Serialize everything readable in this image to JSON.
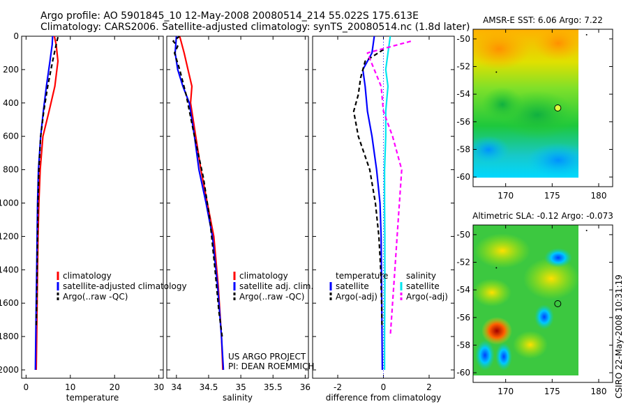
{
  "header": {
    "title_line1": "Argo profile: AO 5901845_10 12-May-2008 20080514_214 55.022S 175.613E",
    "title_line2": "Climatology: CARS2006. Satellite-adjusted climatology: synTS_20080514.nc (1.8d later)"
  },
  "side_label": "CSIRO 22-May-2008 10:31:19",
  "project_note": {
    "line1": "US ARGO PROJECT",
    "line2": "PI: DEAN ROEMMICH"
  },
  "colors": {
    "climatology": "#ff0000",
    "satellite": "#0000ff",
    "argo": "#000000",
    "salinity_satellite": "#00e5ee",
    "salinity_argo": "#ff00ff",
    "zero_line": "#0000ff"
  },
  "chart_data": [
    {
      "type": "line",
      "name": "temperature-profile",
      "xlabel": "temperature",
      "ylabel": "",
      "xlim": [
        -1,
        31
      ],
      "ylim": [
        2050,
        0
      ],
      "xticks": [
        0,
        10,
        20,
        30
      ],
      "xtick_labels": [
        "0",
        "10",
        "20",
        "30"
      ],
      "yticks": [
        0,
        200,
        400,
        600,
        800,
        1000,
        1200,
        1400,
        1600,
        1800,
        2000
      ],
      "ytick_labels": [
        "0",
        "200",
        "400",
        "600",
        "800",
        "1000",
        "1200",
        "1400",
        "1600",
        "1800",
        "2000"
      ],
      "legend": [
        {
          "label": "climatology",
          "color": "#ff0000",
          "dash": "solid"
        },
        {
          "label": "satellite-adjusted climatology",
          "color": "#0000ff",
          "dash": "solid"
        },
        {
          "label": "Argo(..raw -QC)",
          "color": "#000000",
          "dash": "dash"
        }
      ],
      "series": [
        {
          "name": "climatology",
          "color": "#ff0000",
          "dash": "solid",
          "x": [
            6.4,
            6.8,
            7.2,
            6.5,
            5.2,
            3.8,
            3.2,
            2.9,
            2.7,
            2.6,
            2.5,
            2.4,
            2.3
          ],
          "y": [
            0,
            50,
            150,
            300,
            450,
            600,
            800,
            1000,
            1200,
            1400,
            1600,
            1800,
            2000
          ]
        },
        {
          "name": "satellite-adjusted climatology",
          "color": "#0000ff",
          "dash": "solid",
          "x": [
            6.0,
            5.9,
            5.4,
            4.6,
            3.9,
            3.3,
            2.8,
            2.6,
            2.5,
            2.4,
            2.3,
            2.2,
            2.1
          ],
          "y": [
            0,
            50,
            150,
            300,
            450,
            600,
            800,
            1000,
            1200,
            1400,
            1600,
            1800,
            2000
          ]
        },
        {
          "name": "Argo(..raw -QC)",
          "color": "#000000",
          "dash": "dash",
          "x": [
            7.2,
            6.8,
            6.0,
            4.9,
            4.0,
            3.3,
            2.9,
            2.7,
            2.6,
            2.5,
            2.4,
            2.3
          ],
          "y": [
            5,
            50,
            150,
            300,
            450,
            600,
            800,
            1000,
            1200,
            1400,
            1600,
            1750
          ]
        }
      ]
    },
    {
      "type": "line",
      "name": "salinity-profile",
      "xlabel": "salinity",
      "xlim": [
        33.85,
        36.05
      ],
      "ylim": [
        2050,
        0
      ],
      "xticks": [
        34,
        34.5,
        35,
        35.5,
        36
      ],
      "xtick_labels": [
        "34",
        "34.5",
        "35",
        "35.5",
        "36"
      ],
      "legend": [
        {
          "label": "climatology",
          "color": "#ff0000",
          "dash": "solid"
        },
        {
          "label": "satellite adj. clim.",
          "color": "#0000ff",
          "dash": "solid"
        },
        {
          "label": "Argo(..raw -QC)",
          "color": "#000000",
          "dash": "dash"
        }
      ],
      "series": [
        {
          "name": "climatology",
          "color": "#ff0000",
          "dash": "solid",
          "x": [
            34.05,
            34.12,
            34.18,
            34.24,
            34.22,
            34.3,
            34.38,
            34.48,
            34.58,
            34.65,
            34.7,
            34.72
          ],
          "y": [
            0,
            100,
            200,
            300,
            400,
            600,
            800,
            1000,
            1200,
            1500,
            1800,
            2000
          ]
        },
        {
          "name": "satellite adj. clim.",
          "color": "#0000ff",
          "dash": "solid",
          "x": [
            34.0,
            33.98,
            34.02,
            34.1,
            34.2,
            34.28,
            34.35,
            34.46,
            34.56,
            34.64,
            34.7,
            34.73
          ],
          "y": [
            0,
            100,
            200,
            300,
            400,
            600,
            800,
            1000,
            1200,
            1500,
            1800,
            2000
          ]
        },
        {
          "name": "Argo(..raw -QC)",
          "color": "#000000",
          "dash": "dash",
          "x": [
            34.05,
            33.95,
            34.02,
            33.97,
            34.05,
            34.15,
            34.28,
            34.42,
            34.52,
            34.6,
            34.66,
            34.71
          ],
          "y": [
            0,
            30,
            60,
            100,
            200,
            350,
            600,
            850,
            1100,
            1400,
            1650,
            1800
          ]
        }
      ]
    },
    {
      "type": "line",
      "name": "difference-profile",
      "xlabel": "difference from climatology",
      "xlim": [
        -3.1,
        3.1
      ],
      "ylim": [
        2050,
        0
      ],
      "xticks": [
        -2,
        0,
        2
      ],
      "xtick_labels": [
        "-2",
        "0",
        "2"
      ],
      "legend_left": {
        "title": "temperature",
        "items": [
          {
            "label": "satellite",
            "color": "#0000ff",
            "dash": "solid"
          },
          {
            "label": "Argo(-adj)",
            "color": "#000000",
            "dash": "dash"
          }
        ]
      },
      "legend_right": {
        "title": "salinity",
        "items": [
          {
            "label": "satellite",
            "color": "#00e5ee",
            "dash": "solid"
          },
          {
            "label": "Argo(-adj)",
            "color": "#ff00ff",
            "dash": "dash"
          }
        ]
      },
      "series": [
        {
          "name": "temperature satellite",
          "color": "#0000ff",
          "dash": "solid",
          "x": [
            -0.4,
            -0.5,
            -0.9,
            -0.8,
            -0.7,
            -0.5,
            -0.3,
            -0.15,
            -0.1,
            -0.08,
            -0.06,
            -0.05
          ],
          "y": [
            0,
            100,
            200,
            300,
            450,
            600,
            800,
            1000,
            1200,
            1500,
            1800,
            2000
          ]
        },
        {
          "name": "temperature Argo(-adj)",
          "color": "#000000",
          "dash": "dash",
          "x": [
            0.0,
            -0.8,
            -1.0,
            -1.1,
            -1.3,
            -1.1,
            -0.6,
            -0.35,
            -0.2,
            -0.12,
            -0.08,
            -0.06
          ],
          "y": [
            80,
            150,
            250,
            350,
            450,
            600,
            800,
            1000,
            1200,
            1400,
            1600,
            1750
          ]
        },
        {
          "name": "salinity satellite",
          "color": "#00e5ee",
          "dash": "solid",
          "x": [
            0.3,
            0.2,
            0.1,
            0.2,
            0.1,
            0.1,
            0.05,
            0.05,
            0.06,
            0.06,
            0.05,
            0.05
          ],
          "y": [
            0,
            100,
            200,
            300,
            450,
            600,
            800,
            1000,
            1200,
            1500,
            1800,
            2000
          ]
        },
        {
          "name": "salinity Argo(-adj)",
          "color": "#ff00ff",
          "dash": "dash",
          "x": [
            1.2,
            -0.7,
            -0.4,
            -0.1,
            0.0,
            0.4,
            0.8,
            0.7,
            0.6,
            0.5,
            0.4,
            0.3
          ],
          "y": [
            30,
            100,
            200,
            300,
            450,
            600,
            800,
            1000,
            1200,
            1400,
            1600,
            1800
          ]
        }
      ]
    },
    {
      "type": "heatmap",
      "name": "amsr-e-sst-map",
      "title": "AMSR-E SST: 6.06 Argo: 7.22",
      "xlim": [
        166.5,
        181.5
      ],
      "ylim": [
        -60.7,
        -49.3
      ],
      "data_xlim": [
        166.5,
        180
      ],
      "data_ylim": [
        -60,
        -49.3
      ],
      "xticks": [
        170,
        175,
        180
      ],
      "xtick_labels": [
        "170",
        "175",
        "180"
      ],
      "yticks": [
        -50,
        -52,
        -54,
        -56,
        -58,
        -60
      ],
      "ytick_labels": [
        "-50",
        "-52",
        "-54",
        "-56",
        "-58",
        "-60"
      ],
      "float_position": {
        "lon": 175.6,
        "lat": -55.0
      }
    },
    {
      "type": "heatmap",
      "name": "altimetric-sla-map",
      "title": "Altimetric SLA: -0.12 Argo: -0.073",
      "xlim": [
        166.5,
        181.5
      ],
      "ylim": [
        -60.7,
        -49.3
      ],
      "data_xlim": [
        166.5,
        180
      ],
      "data_ylim": [
        -60,
        -49.3
      ],
      "xticks": [
        170,
        175,
        180
      ],
      "xtick_labels": [
        "170",
        "175",
        "180"
      ],
      "yticks": [
        -50,
        -52,
        -54,
        -56,
        -58,
        -60
      ],
      "ytick_labels": [
        "-50",
        "-52",
        "-54",
        "-56",
        "-58",
        "-60"
      ],
      "float_position": {
        "lon": 175.6,
        "lat": -55.0
      }
    }
  ]
}
